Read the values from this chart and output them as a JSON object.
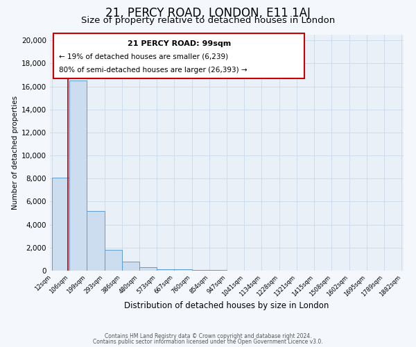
{
  "title_line1": "21, PERCY ROAD, LONDON, E11 1AJ",
  "title_line2": "Size of property relative to detached houses in London",
  "xlabel": "Distribution of detached houses by size in London",
  "ylabel": "Number of detached properties",
  "bin_edges": [
    12,
    106,
    199,
    293,
    386,
    480,
    573,
    667,
    760,
    854,
    947,
    1041,
    1134,
    1228,
    1321,
    1415,
    1508,
    1602,
    1695,
    1789,
    1882
  ],
  "bin_heights": [
    8100,
    16500,
    5200,
    1800,
    800,
    300,
    150,
    100,
    80,
    50,
    30,
    20,
    15,
    10,
    8,
    6,
    5,
    4,
    3,
    2
  ],
  "bar_fill_color": "#ccddf0",
  "bar_edge_color": "#5b9bd5",
  "grid_color": "#c8d8e8",
  "background_color": "#eaf0f8",
  "fig_background_color": "#f4f7fc",
  "red_line_x": 99,
  "annotation_title": "21 PERCY ROAD: 99sqm",
  "annotation_line1": "← 19% of detached houses are smaller (6,239)",
  "annotation_line2": "80% of semi-detached houses are larger (26,393) →",
  "ylim": [
    0,
    20500
  ],
  "yticks": [
    0,
    2000,
    4000,
    6000,
    8000,
    10000,
    12000,
    14000,
    16000,
    18000,
    20000
  ],
  "footer_line1": "Contains HM Land Registry data © Crown copyright and database right 2024.",
  "footer_line2": "Contains public sector information licensed under the Open Government Licence v3.0.",
  "title_fontsize": 12,
  "subtitle_fontsize": 9.5,
  "ylabel_fontsize": 7.5,
  "xlabel_fontsize": 8.5,
  "ytick_fontsize": 7.5,
  "xtick_fontsize": 6.0,
  "footer_fontsize": 5.5
}
